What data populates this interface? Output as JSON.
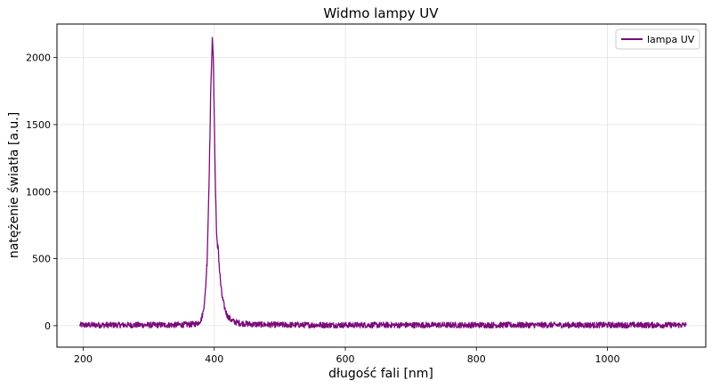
{
  "chart_data": {
    "type": "line",
    "title": "Widmo lampy UV",
    "xlabel": "długość fali [nm]",
    "ylabel": "natężenie światła [a.u.]",
    "xlim": [
      160,
      1150
    ],
    "ylim": [
      -160,
      2250
    ],
    "xticks": [
      200,
      400,
      600,
      800,
      1000
    ],
    "yticks": [
      0,
      500,
      1000,
      1500,
      2000
    ],
    "grid": true,
    "legend_position": "top-right",
    "series": [
      {
        "name": "lampa UV",
        "color": "#7b0a7b",
        "noise_amplitude": 22,
        "x": [
          195,
          250,
          300,
          340,
          360,
          370,
          375,
          380,
          383,
          386,
          389,
          391,
          393,
          394.5,
          396,
          397,
          398,
          399,
          400,
          401,
          402,
          403,
          404,
          405,
          406,
          407,
          408,
          410,
          412,
          415,
          418,
          420,
          425,
          430,
          440,
          460,
          500,
          600,
          700,
          800,
          900,
          1000,
          1120
        ],
        "y": [
          5,
          5,
          5,
          6,
          8,
          12,
          20,
          45,
          100,
          220,
          480,
          850,
          1300,
          1700,
          2000,
          2120,
          2060,
          1880,
          1580,
          1250,
          1000,
          800,
          650,
          560,
          600,
          500,
          420,
          300,
          220,
          150,
          100,
          75,
          45,
          30,
          18,
          10,
          6,
          5,
          5,
          5,
          5,
          5,
          5
        ]
      }
    ]
  }
}
